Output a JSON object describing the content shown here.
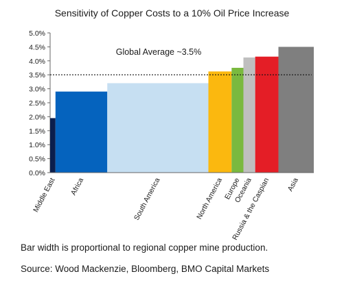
{
  "chart_data": {
    "type": "bar",
    "title": "Sensitivity of Copper Costs to a 10% Oil Price Increase",
    "xlabel": "",
    "ylabel": "",
    "ylim": [
      0,
      5
    ],
    "y_ticks": [
      "0.0%",
      "0.5%",
      "1.0%",
      "1.5%",
      "2.0%",
      "2.5%",
      "3.0%",
      "3.5%",
      "4.0%",
      "4.5%",
      "5.0%"
    ],
    "width_encoding": "Bar width is proportional to regional copper mine production.",
    "categories": [
      "Middle East",
      "Africa",
      "South America",
      "North America",
      "Europe",
      "Oceania",
      "Russia & the Caspian",
      "Asia"
    ],
    "values": [
      1.95,
      2.9,
      3.2,
      3.62,
      3.75,
      4.12,
      4.15,
      4.5
    ],
    "widths": [
      1.5,
      14.5,
      28.3,
      6.5,
      3.3,
      3.3,
      6.5,
      9.9
    ],
    "colors": [
      "#0b1f4e",
      "#0563be",
      "#c6dff2",
      "#fbb80f",
      "#7ab93f",
      "#bfbfbf",
      "#e41e26",
      "#7f7f7f"
    ],
    "reference_line": {
      "label": "Global Average ~3.5%",
      "value": 3.5,
      "style": "dotted"
    },
    "grid": false,
    "legend": "none"
  },
  "note": "Bar width is proportional to regional copper mine production.",
  "source": "Source: Wood Mackenzie, Bloomberg, BMO Capital Markets"
}
